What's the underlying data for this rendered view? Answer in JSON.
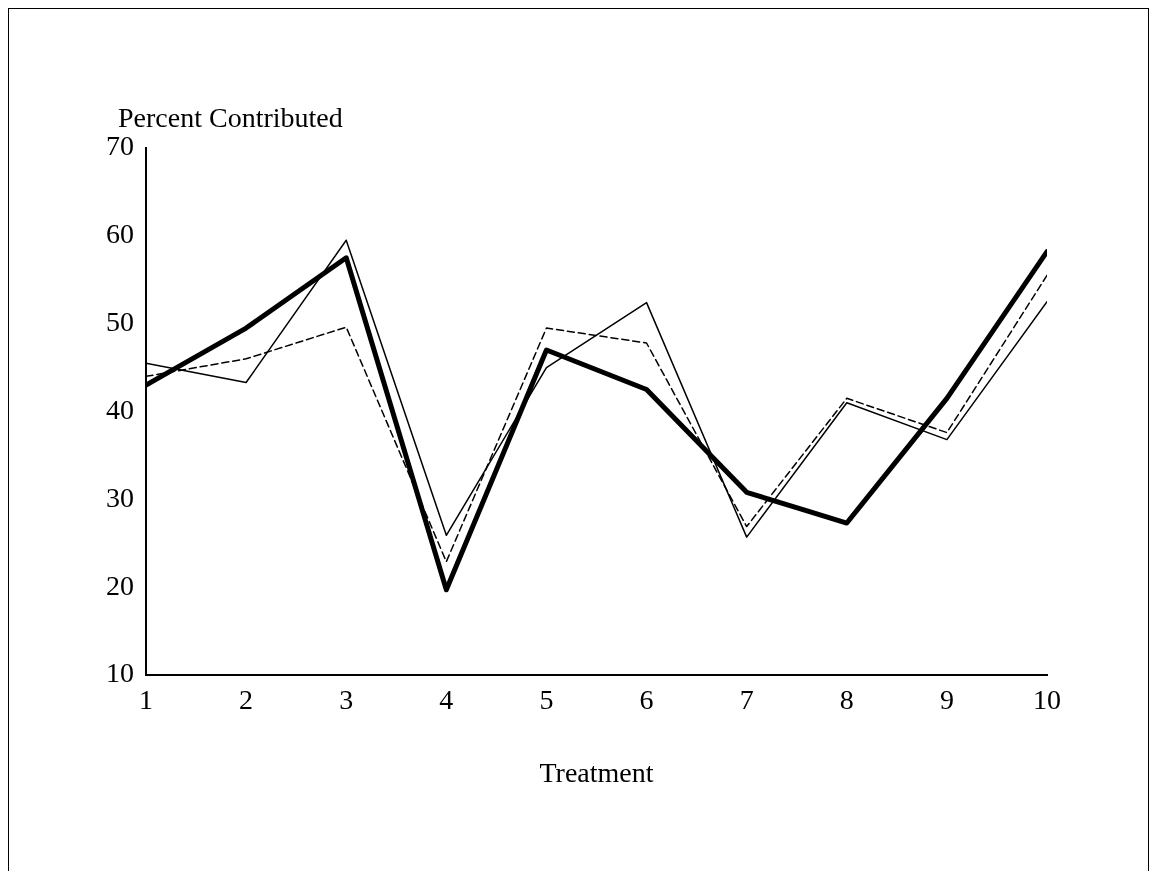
{
  "chart_data": {
    "type": "line",
    "ylabel": "Percent Contributed",
    "xlabel": "Treatment",
    "x": [
      1,
      2,
      3,
      4,
      5,
      6,
      7,
      8,
      9,
      10
    ],
    "xlim": [
      1,
      10
    ],
    "xticks": [
      1,
      2,
      3,
      4,
      5,
      6,
      7,
      8,
      9,
      10
    ],
    "ylim": [
      10,
      70
    ],
    "yticks": [
      10,
      20,
      30,
      40,
      50,
      60,
      70
    ],
    "grid": false,
    "legend": false,
    "marker": "none",
    "series": [
      {
        "color": "#000000",
        "line_style": "solid",
        "values": [
          45.5,
          43.3,
          59.5,
          25.9,
          45,
          52.4,
          25.7,
          41,
          36.8,
          52.5
        ]
      },
      {
        "color": "#000000",
        "line_style": "dashed",
        "values": [
          44,
          46,
          49.6,
          22.9,
          49.5,
          47.8,
          26.9,
          41.5,
          37.6,
          55.5
        ]
      },
      {
        "color": "#000000",
        "line_style": "solid",
        "values": [
          43,
          49.5,
          57.5,
          19.7,
          47,
          42.5,
          30.8,
          27.3,
          41.5,
          58.2
        ]
      }
    ]
  }
}
